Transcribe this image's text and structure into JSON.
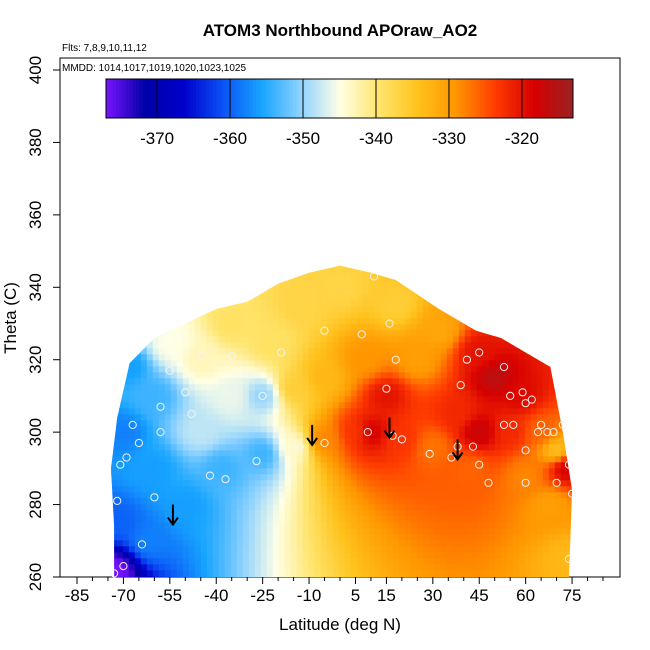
{
  "chart_data": {
    "type": "heatmap",
    "title": "ATOM3 Northbound APOraw_AO2",
    "annotations": [
      "Flts: 7,8,9,10,11,12",
      "MMDD: 1014,1017,1019,1020,1023,1025"
    ],
    "xlabel": "Latitude (deg N)",
    "ylabel": "Theta (C)",
    "xlim": [
      -85,
      85
    ],
    "ylim": [
      260,
      400
    ],
    "x_ticks": [
      -85,
      -70,
      -55,
      -40,
      -25,
      -10,
      5,
      15,
      30,
      45,
      60,
      75
    ],
    "y_ticks": [
      260,
      280,
      300,
      320,
      340,
      360,
      380,
      400
    ],
    "colorbar": {
      "range": [
        -377,
        -313
      ],
      "ticks": [
        -370,
        -360,
        -350,
        -340,
        -330,
        -320
      ],
      "colors": [
        "#7A14FF",
        "#0000A6",
        "#0000CC",
        "#0A52F5",
        "#17A4FF",
        "#8ED2FF",
        "#FFFFE6",
        "#FFE56E",
        "#FFC31E",
        "#FF9600",
        "#FF3C00",
        "#D70000",
        "#9A2222"
      ]
    },
    "data_boundary": {
      "lower": [
        [
          -73,
          260
        ],
        [
          -66,
          264
        ],
        [
          -55,
          270
        ],
        [
          -45,
          280
        ],
        [
          -33,
          286
        ],
        [
          -20,
          292
        ],
        [
          -10,
          294
        ],
        [
          0,
          296
        ],
        [
          10,
          298
        ],
        [
          20,
          296
        ],
        [
          35,
          293
        ],
        [
          45,
          287
        ],
        [
          55,
          283
        ],
        [
          65,
          275
        ],
        [
          74,
          260
        ]
      ],
      "upper": [
        [
          74,
          260
        ],
        [
          75,
          284
        ],
        [
          72,
          300
        ],
        [
          68,
          318
        ],
        [
          60,
          322
        ],
        [
          52,
          326
        ],
        [
          44,
          328
        ],
        [
          32,
          334
        ],
        [
          25,
          338
        ],
        [
          18,
          342
        ],
        [
          10,
          344
        ],
        [
          0,
          346
        ],
        [
          -10,
          344
        ],
        [
          -20,
          341
        ],
        [
          -30,
          336
        ],
        [
          -40,
          334
        ],
        [
          -50,
          330
        ],
        [
          -60,
          326
        ],
        [
          -68,
          319
        ],
        [
          -72,
          304
        ],
        [
          -74,
          290
        ],
        [
          -73,
          274
        ],
        [
          -73,
          260
        ]
      ]
    },
    "field_points": [
      {
        "lat": -73,
        "theta": 262,
        "value": -377
      },
      {
        "lat": -72,
        "theta": 275,
        "value": -360
      },
      {
        "lat": -70,
        "theta": 300,
        "value": -358
      },
      {
        "lat": -68,
        "theta": 318,
        "value": -356
      },
      {
        "lat": -62,
        "theta": 270,
        "value": -358
      },
      {
        "lat": -60,
        "theta": 290,
        "value": -356
      },
      {
        "lat": -60,
        "theta": 310,
        "value": -354
      },
      {
        "lat": -55,
        "theta": 324,
        "value": -345
      },
      {
        "lat": -50,
        "theta": 280,
        "value": -356
      },
      {
        "lat": -45,
        "theta": 300,
        "value": -348
      },
      {
        "lat": -45,
        "theta": 320,
        "value": -343
      },
      {
        "lat": -38,
        "theta": 290,
        "value": -354
      },
      {
        "lat": -35,
        "theta": 310,
        "value": -346
      },
      {
        "lat": -35,
        "theta": 330,
        "value": -339
      },
      {
        "lat": -25,
        "theta": 294,
        "value": -354
      },
      {
        "lat": -25,
        "theta": 310,
        "value": -350
      },
      {
        "lat": -22,
        "theta": 325,
        "value": -339
      },
      {
        "lat": -15,
        "theta": 296,
        "value": -344
      },
      {
        "lat": -15,
        "theta": 312,
        "value": -336
      },
      {
        "lat": -12,
        "theta": 335,
        "value": -337
      },
      {
        "lat": -5,
        "theta": 298,
        "value": -328
      },
      {
        "lat": -5,
        "theta": 315,
        "value": -333
      },
      {
        "lat": 0,
        "theta": 340,
        "value": -337
      },
      {
        "lat": 5,
        "theta": 300,
        "value": -323
      },
      {
        "lat": 8,
        "theta": 320,
        "value": -329
      },
      {
        "lat": 10,
        "theta": 300,
        "value": -318
      },
      {
        "lat": 15,
        "theta": 310,
        "value": -320
      },
      {
        "lat": 18,
        "theta": 335,
        "value": -336
      },
      {
        "lat": 20,
        "theta": 298,
        "value": -323
      },
      {
        "lat": 25,
        "theta": 320,
        "value": -330
      },
      {
        "lat": 30,
        "theta": 296,
        "value": -327
      },
      {
        "lat": 32,
        "theta": 328,
        "value": -331
      },
      {
        "lat": 38,
        "theta": 305,
        "value": -322
      },
      {
        "lat": 42,
        "theta": 290,
        "value": -326
      },
      {
        "lat": 45,
        "theta": 300,
        "value": -317
      },
      {
        "lat": 45,
        "theta": 322,
        "value": -320
      },
      {
        "lat": 50,
        "theta": 315,
        "value": -316
      },
      {
        "lat": 55,
        "theta": 300,
        "value": -322
      },
      {
        "lat": 58,
        "theta": 310,
        "value": -319
      },
      {
        "lat": 60,
        "theta": 288,
        "value": -328
      },
      {
        "lat": 65,
        "theta": 300,
        "value": -326
      },
      {
        "lat": 68,
        "theta": 280,
        "value": -330
      },
      {
        "lat": 70,
        "theta": 295,
        "value": -334
      },
      {
        "lat": 73,
        "theta": 290,
        "value": -318
      },
      {
        "lat": 74,
        "theta": 265,
        "value": -333
      }
    ],
    "sample_points": [
      [
        -73,
        261
      ],
      [
        -72,
        281
      ],
      [
        -71,
        291
      ],
      [
        -69,
        293
      ],
      [
        -67,
        302
      ],
      [
        -65,
        297
      ],
      [
        -70,
        263
      ],
      [
        -64,
        269
      ],
      [
        -60,
        282
      ],
      [
        -58,
        300
      ],
      [
        -58,
        307
      ],
      [
        -55,
        317
      ],
      [
        -50,
        311
      ],
      [
        -48,
        305
      ],
      [
        -45,
        321
      ],
      [
        -42,
        288
      ],
      [
        -37,
        287
      ],
      [
        -35,
        321
      ],
      [
        -27,
        292
      ],
      [
        -25,
        310
      ],
      [
        -19,
        322
      ],
      [
        -13,
        296
      ],
      [
        -5,
        297
      ],
      [
        -5,
        328
      ],
      [
        7,
        327
      ],
      [
        9,
        300
      ],
      [
        11,
        343
      ],
      [
        16,
        330
      ],
      [
        15,
        312
      ],
      [
        18,
        320
      ],
      [
        17,
        299
      ],
      [
        20,
        298
      ],
      [
        29,
        294
      ],
      [
        36,
        293
      ],
      [
        38,
        296
      ],
      [
        39,
        313
      ],
      [
        41,
        320
      ],
      [
        43,
        296
      ],
      [
        45,
        291
      ],
      [
        45,
        322
      ],
      [
        48,
        286
      ],
      [
        53,
        302
      ],
      [
        53,
        318
      ],
      [
        55,
        310
      ],
      [
        56,
        302
      ],
      [
        59,
        311
      ],
      [
        60,
        308
      ],
      [
        60,
        295
      ],
      [
        60,
        286
      ],
      [
        62,
        309
      ],
      [
        64,
        300
      ],
      [
        65,
        302
      ],
      [
        67,
        300
      ],
      [
        69,
        300
      ],
      [
        70,
        286
      ],
      [
        72,
        302
      ],
      [
        74,
        291
      ],
      [
        75,
        283
      ],
      [
        74,
        265
      ]
    ],
    "arrows": [
      {
        "lat": -54,
        "theta": 280
      },
      {
        "lat": -9,
        "theta": 302
      },
      {
        "lat": 16,
        "theta": 304
      },
      {
        "lat": 38,
        "theta": 298
      }
    ]
  }
}
